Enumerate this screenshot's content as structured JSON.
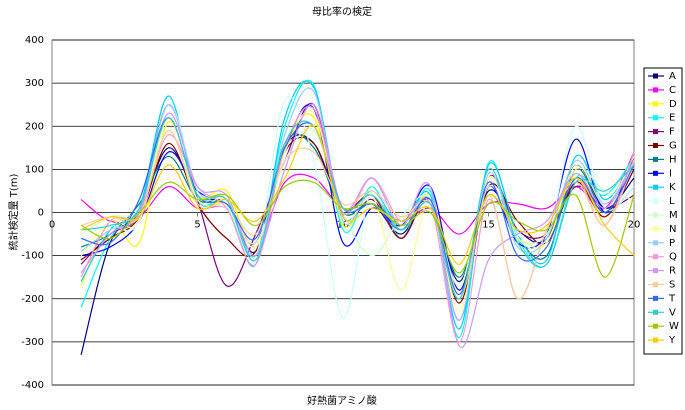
{
  "chart_data": {
    "type": "line",
    "title": "母比率の検定",
    "x_label": "好熱菌アミノ酸",
    "y_label": "統計検定量 T(m)",
    "x": [
      1,
      2,
      3,
      4,
      5,
      6,
      7,
      8,
      9,
      10,
      11,
      12,
      13,
      14,
      15,
      16,
      17,
      18,
      19,
      20
    ],
    "xlim": [
      0,
      20
    ],
    "xticks": [
      0,
      5,
      10,
      15,
      20
    ],
    "ylim": [
      -400,
      400
    ],
    "yticks": [
      -400,
      -300,
      -200,
      -100,
      0,
      100,
      200,
      300,
      400
    ],
    "grid": true,
    "legend": "right",
    "series": [
      {
        "name": "A",
        "color": "#000080",
        "values": [
          -330,
          -70,
          0,
          150,
          40,
          20,
          -90,
          150,
          160,
          0,
          20,
          -50,
          30,
          -160,
          50,
          -40,
          -60,
          110,
          10,
          80
        ]
      },
      {
        "name": "C",
        "color": "#FF00FF",
        "values": [
          30,
          -20,
          -10,
          60,
          10,
          10,
          -80,
          70,
          80,
          10,
          20,
          -20,
          10,
          -50,
          20,
          20,
          10,
          60,
          10,
          140
        ]
      },
      {
        "name": "D",
        "color": "#FFFF00",
        "values": [
          -170,
          -20,
          -70,
          210,
          40,
          50,
          -80,
          150,
          220,
          -30,
          50,
          -40,
          40,
          -180,
          80,
          -50,
          -70,
          90,
          -10,
          130
        ]
      },
      {
        "name": "E",
        "color": "#00FFFF",
        "values": [
          -220,
          -60,
          10,
          270,
          30,
          30,
          -100,
          200,
          295,
          -40,
          60,
          -60,
          50,
          -290,
          115,
          -60,
          -120,
          80,
          40,
          130
        ]
      },
      {
        "name": "F",
        "color": "#800080",
        "values": [
          -120,
          -50,
          0,
          250,
          30,
          -170,
          -50,
          120,
          250,
          -10,
          30,
          -60,
          30,
          -250,
          80,
          -40,
          -50,
          60,
          10,
          40
        ]
      },
      {
        "name": "G",
        "color": "#800000",
        "values": [
          -110,
          -60,
          -10,
          160,
          20,
          -60,
          -90,
          140,
          160,
          10,
          40,
          -60,
          30,
          -210,
          60,
          -20,
          -70,
          70,
          -10,
          100
        ]
      },
      {
        "name": "H",
        "color": "#008080",
        "values": [
          -80,
          -50,
          20,
          130,
          30,
          20,
          -100,
          160,
          150,
          0,
          20,
          -20,
          20,
          -150,
          40,
          -60,
          -100,
          100,
          0,
          60
        ]
      },
      {
        "name": "I",
        "color": "#0000FF",
        "values": [
          -100,
          -80,
          -20,
          140,
          50,
          20,
          -70,
          150,
          240,
          -70,
          10,
          -30,
          60,
          -180,
          60,
          -70,
          -50,
          170,
          0,
          130
        ]
      },
      {
        "name": "K",
        "color": "#00CCFF",
        "values": [
          -160,
          -40,
          10,
          270,
          30,
          20,
          -120,
          220,
          290,
          -10,
          50,
          -30,
          40,
          -270,
          110,
          -50,
          -110,
          130,
          30,
          120
        ]
      },
      {
        "name": "L",
        "color": "#CCFFFF",
        "values": [
          -40,
          -30,
          -20,
          250,
          60,
          20,
          -100,
          260,
          120,
          -245,
          60,
          -20,
          20,
          -170,
          80,
          -50,
          -60,
          200,
          10,
          60
        ]
      },
      {
        "name": "M",
        "color": "#CCFFCC",
        "values": [
          -50,
          -10,
          10,
          190,
          30,
          10,
          -70,
          120,
          190,
          0,
          -100,
          -10,
          30,
          -190,
          60,
          -60,
          -50,
          100,
          50,
          30
        ]
      },
      {
        "name": "N",
        "color": "#FFFF99",
        "values": [
          -100,
          -20,
          -20,
          220,
          30,
          30,
          -80,
          140,
          230,
          -20,
          40,
          -180,
          30,
          -230,
          80,
          -60,
          -70,
          110,
          20,
          130
        ]
      },
      {
        "name": "P",
        "color": "#99CCFF",
        "values": [
          -90,
          -40,
          0,
          250,
          50,
          30,
          -100,
          180,
          280,
          -20,
          50,
          -40,
          30,
          -250,
          90,
          -80,
          -60,
          120,
          20,
          120
        ]
      },
      {
        "name": "Q",
        "color": "#FF99CC",
        "values": [
          -150,
          -20,
          0,
          180,
          60,
          10,
          -120,
          150,
          240,
          0,
          80,
          -20,
          20,
          -300,
          30,
          -200,
          -40,
          80,
          -30,
          140
        ]
      },
      {
        "name": "R",
        "color": "#CC99FF",
        "values": [
          -140,
          -50,
          0,
          230,
          60,
          40,
          -100,
          100,
          250,
          10,
          80,
          -30,
          60,
          -310,
          -110,
          -50,
          -20,
          90,
          10,
          120
        ]
      },
      {
        "name": "S",
        "color": "#FFCC99",
        "values": [
          -30,
          -10,
          -10,
          190,
          20,
          20,
          -50,
          120,
          140,
          20,
          50,
          -10,
          20,
          -200,
          40,
          -200,
          -40,
          70,
          -30,
          120
        ]
      },
      {
        "name": "T",
        "color": "#3366FF",
        "values": [
          -60,
          -70,
          30,
          220,
          40,
          20,
          -60,
          150,
          200,
          10,
          20,
          -40,
          30,
          -190,
          70,
          -100,
          -80,
          80,
          0,
          110
        ]
      },
      {
        "name": "V",
        "color": "#33CCCC",
        "values": [
          -40,
          -30,
          10,
          220,
          40,
          30,
          -110,
          160,
          200,
          10,
          40,
          -40,
          20,
          -200,
          100,
          -70,
          -120,
          70,
          50,
          110
        ]
      },
      {
        "name": "W",
        "color": "#99CC00",
        "values": [
          -30,
          -60,
          0,
          70,
          30,
          40,
          -30,
          60,
          70,
          10,
          20,
          -30,
          0,
          -140,
          20,
          -20,
          -40,
          40,
          -150,
          40
        ]
      },
      {
        "name": "Y",
        "color": "#FFCC00",
        "values": [
          -40,
          -10,
          -10,
          110,
          10,
          30,
          -20,
          80,
          200,
          -10,
          10,
          -20,
          10,
          -120,
          40,
          -40,
          -30,
          80,
          -30,
          -100
        ]
      }
    ]
  }
}
